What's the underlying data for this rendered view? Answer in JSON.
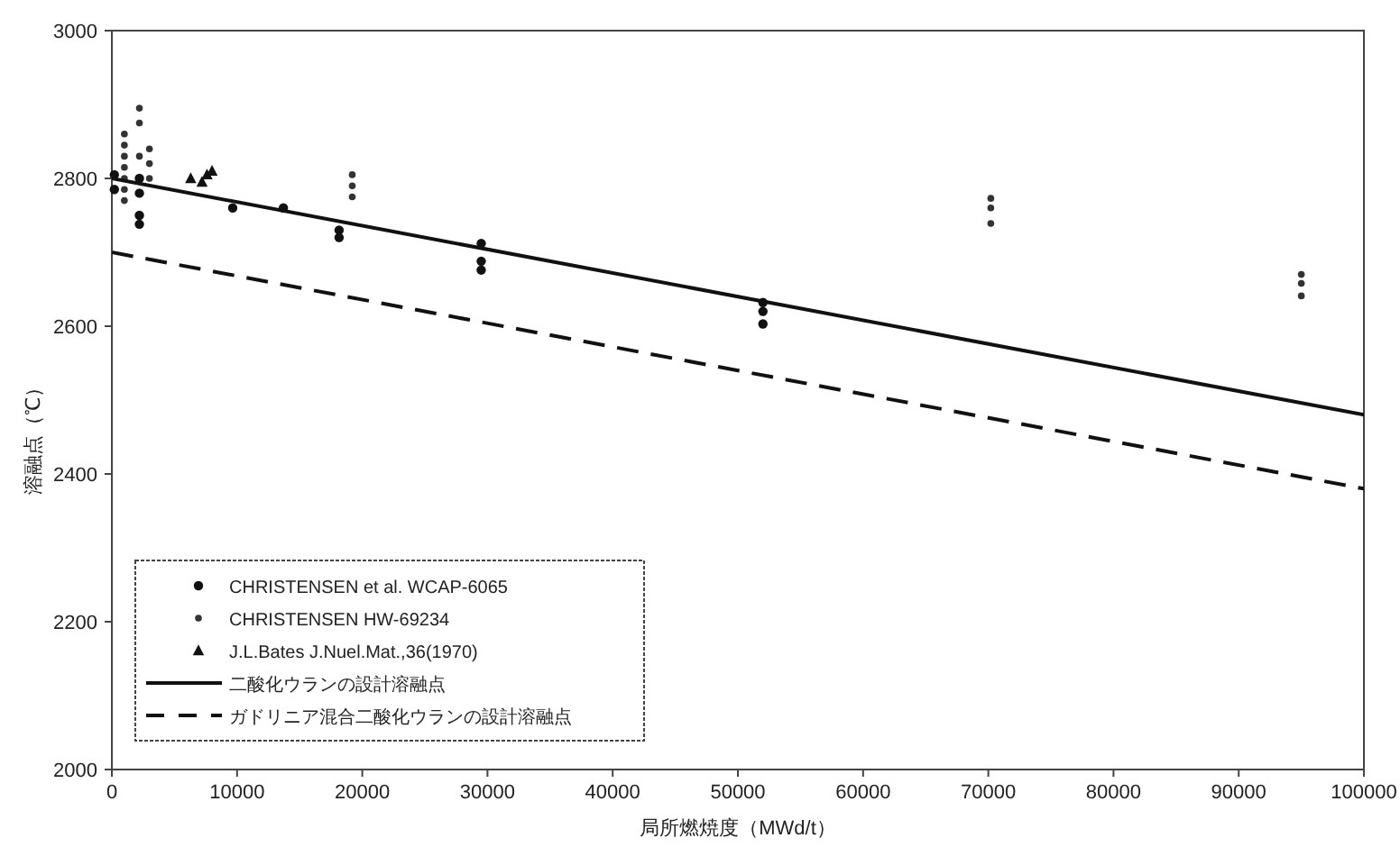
{
  "chart_data": {
    "type": "scatter",
    "xlabel": "局所燃焼度（MWd/t）",
    "ylabel": "溶融点（℃）",
    "xlim": [
      0,
      100000
    ],
    "ylim": [
      2000,
      3000
    ],
    "xticks": [
      0,
      10000,
      20000,
      30000,
      40000,
      50000,
      60000,
      70000,
      80000,
      90000,
      100000
    ],
    "yticks": [
      2000,
      2200,
      2400,
      2600,
      2800,
      3000
    ],
    "grid": false,
    "legend": "bottom left",
    "series": [
      {
        "name": "CHRISTENSEN et al. WCAP-6065",
        "type": "scatter",
        "marker": "circle",
        "color": "#111111",
        "x": [
          200,
          200,
          2200,
          2200,
          2200,
          2200,
          9650,
          13700,
          18150,
          18150,
          29500,
          29500,
          29500,
          52000,
          52000,
          52000
        ],
        "values": [
          2805,
          2785,
          2800,
          2780,
          2750,
          2738,
          2760,
          2760,
          2730,
          2720,
          2712,
          2688,
          2676,
          2632,
          2620,
          2603
        ]
      },
      {
        "name": "CHRISTENSEN HW-69234",
        "type": "scatter",
        "marker": "circle",
        "color": "#333333",
        "x": [
          1000,
          1000,
          1000,
          1000,
          1000,
          1000,
          1000,
          2200,
          2200,
          2200,
          3000,
          3000,
          3000,
          19200,
          19200,
          19200,
          70200,
          70200,
          70200,
          95000,
          95000,
          95000
        ],
        "values": [
          2860,
          2845,
          2830,
          2815,
          2800,
          2785,
          2770,
          2895,
          2875,
          2830,
          2840,
          2820,
          2800,
          2805,
          2790,
          2775,
          2773,
          2760,
          2739,
          2670,
          2658,
          2641
        ]
      },
      {
        "name": "J.L.Bates J.Nuel.Mat.,36(1970)",
        "type": "scatter",
        "marker": "triangle",
        "color": "#111111",
        "x": [
          6300,
          7200,
          7600,
          8000
        ],
        "values": [
          2800,
          2795,
          2805,
          2810
        ]
      },
      {
        "name": "二酸化ウランの設計溶融点",
        "type": "line",
        "marker": "none",
        "line_style": "solid",
        "color": "#111111",
        "x": [
          0,
          100000
        ],
        "values": [
          2800,
          2480
        ]
      },
      {
        "name": "ガドリニア混合二酸化ウランの設計溶融点",
        "type": "line",
        "marker": "none",
        "line_style": "dashed",
        "color": "#111111",
        "x": [
          0,
          100000
        ],
        "values": [
          2700,
          2380
        ]
      }
    ]
  }
}
